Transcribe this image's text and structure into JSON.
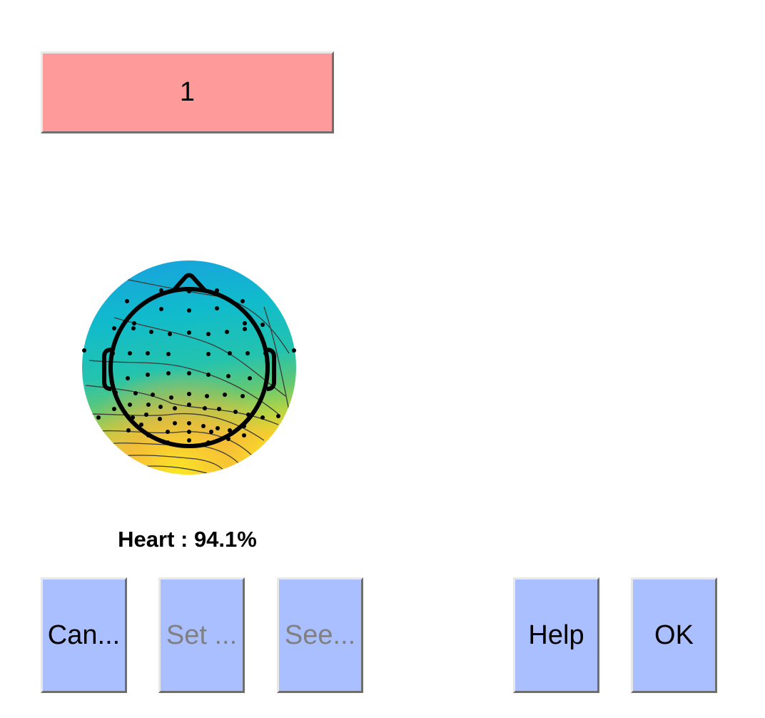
{
  "component": {
    "number_label": "1",
    "color": "#ff9a9a"
  },
  "classification": {
    "label": "Heart : 94.1%"
  },
  "buttons": {
    "cancel_label": "Can...",
    "set_label": "Set ...",
    "see_label": "See...",
    "help_label": "Help",
    "ok_label": "OK",
    "color": "#a9bfff"
  },
  "topomap": {
    "colormap": [
      "#1aa6e0",
      "#12bcc8",
      "#2cc4a8",
      "#7acb6a",
      "#d8dc3a",
      "#fbe324",
      "#f7b93a"
    ],
    "electrode_icon": "electrode-dot",
    "head_icon": "head-outline-icon"
  }
}
